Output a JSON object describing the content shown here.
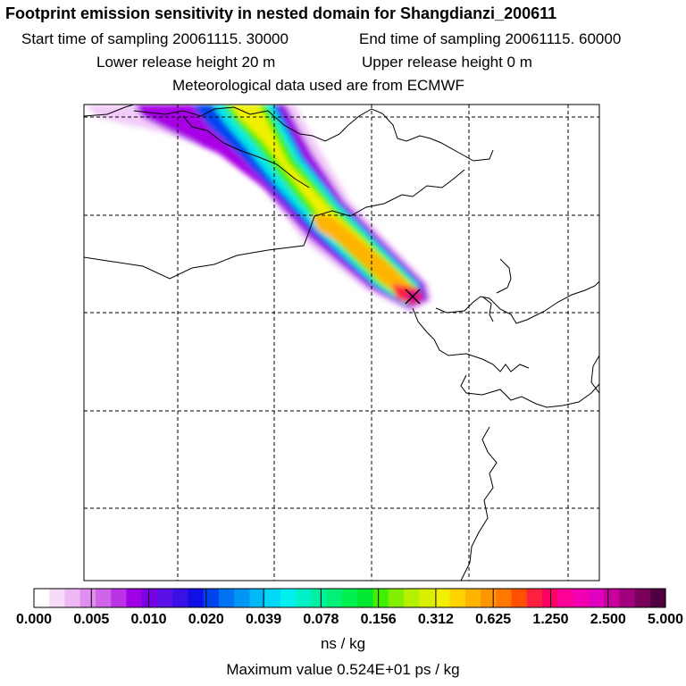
{
  "title": "Footprint emission sensitivity in nested domain for Shangdianzi_200611",
  "sampling": {
    "start": "Start time of sampling 20061115. 30000",
    "end": "End time of sampling 20061115. 60000"
  },
  "release": {
    "lower": "Lower release height   20 m",
    "upper": "Upper release height    0 m"
  },
  "meteo": "Meteorological data used are from ECMWF",
  "colorbar": {
    "tick_labels": [
      "0.000",
      "0.005",
      "0.010",
      "0.020",
      "0.039",
      "0.078",
      "0.156",
      "0.312",
      "0.625",
      "1.250",
      "2.500",
      "5.000"
    ],
    "colors": [
      "#ffffff",
      "#f7dcfa",
      "#eeb8f5",
      "#e08ef0",
      "#cf66ea",
      "#bb33e6",
      "#a000e6",
      "#7a00e6",
      "#5a10e6",
      "#3a10e6",
      "#1010e6",
      "#0044f0",
      "#0072f4",
      "#0096f6",
      "#00b8f6",
      "#00d8f6",
      "#00f0f0",
      "#00f0c8",
      "#00f0a0",
      "#00f078",
      "#00f050",
      "#00e832",
      "#40f000",
      "#80f000",
      "#b4f000",
      "#d8f000",
      "#f0f000",
      "#ffd400",
      "#ffb400",
      "#ff9600",
      "#ff7800",
      "#ff5000",
      "#ff2040",
      "#ff0066",
      "#ff0099",
      "#f000b0",
      "#e000c0",
      "#c8009c",
      "#a0007c",
      "#7a005a",
      "#500040"
    ],
    "units": "ns / kg"
  },
  "max_value": "Maximum value  0.524E+01 ps / kg",
  "receptor": {
    "name": "Shangdianzi",
    "marker": "x-cross-icon"
  },
  "grid": {
    "style": "dashed",
    "color": "#000000"
  }
}
